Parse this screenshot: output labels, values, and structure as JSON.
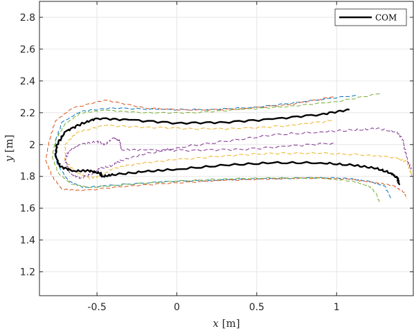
{
  "chart_data": {
    "type": "line",
    "title": "",
    "xlabel": {
      "var": "x",
      "unit": " [m]"
    },
    "ylabel": {
      "var": "y",
      "unit": " [m]"
    },
    "xlim": [
      -0.86,
      1.48
    ],
    "ylim": [
      1.05,
      2.9
    ],
    "xticks": [
      -0.5,
      0,
      0.5,
      1
    ],
    "xtick_labels": [
      "-0.5",
      "0",
      "0.5",
      "1"
    ],
    "yticks": [
      1.2,
      1.4,
      1.6,
      1.8,
      2.0,
      2.2,
      2.4,
      2.6,
      2.8
    ],
    "ytick_labels": [
      "1.2",
      "1.4",
      "1.6",
      "1.8",
      "2",
      "2.2",
      "2.4",
      "2.6",
      "2.8"
    ],
    "grid": true,
    "legend": {
      "position": "top-right",
      "entries": [
        "COM"
      ]
    },
    "series": [
      {
        "name": "COM",
        "color": "#000000",
        "style": "solid",
        "wobble": 0.006,
        "points": [
          [
            1.08,
            2.22
          ],
          [
            0.9,
            2.19
          ],
          [
            0.6,
            2.16
          ],
          [
            0.3,
            2.14
          ],
          [
            0,
            2.135
          ],
          [
            -0.3,
            2.155
          ],
          [
            -0.5,
            2.165
          ],
          [
            -0.6,
            2.13
          ],
          [
            -0.7,
            2.08
          ],
          [
            -0.75,
            2.0
          ],
          [
            -0.76,
            1.93
          ],
          [
            -0.73,
            1.86
          ],
          [
            -0.65,
            1.835
          ],
          [
            -0.55,
            1.835
          ],
          [
            -0.48,
            1.82
          ],
          [
            -0.47,
            1.8
          ],
          [
            -0.4,
            1.81
          ],
          [
            -0.2,
            1.83
          ],
          [
            0,
            1.845
          ],
          [
            0.3,
            1.87
          ],
          [
            0.6,
            1.885
          ],
          [
            0.9,
            1.885
          ],
          [
            1.1,
            1.87
          ],
          [
            1.25,
            1.85
          ],
          [
            1.34,
            1.82
          ],
          [
            1.38,
            1.79
          ],
          [
            1.39,
            1.75
          ]
        ]
      },
      {
        "color": "#0072BD",
        "style": "dashed",
        "wobble": 0.004,
        "points": [
          [
            1.12,
            2.31
          ],
          [
            0.8,
            2.27
          ],
          [
            0.5,
            2.235
          ],
          [
            0.2,
            2.22
          ],
          [
            -0.1,
            2.22
          ],
          [
            -0.4,
            2.23
          ],
          [
            -0.6,
            2.21
          ],
          [
            -0.72,
            2.14
          ],
          [
            -0.76,
            2.02
          ],
          [
            -0.75,
            1.88
          ],
          [
            -0.68,
            1.77
          ],
          [
            -0.58,
            1.73
          ],
          [
            -0.4,
            1.745
          ],
          [
            -0.1,
            1.765
          ],
          [
            0.2,
            1.775
          ],
          [
            0.5,
            1.785
          ],
          [
            0.8,
            1.79
          ],
          [
            1.05,
            1.79
          ],
          [
            1.2,
            1.77
          ],
          [
            1.3,
            1.74
          ],
          [
            1.34,
            1.66
          ]
        ]
      },
      {
        "color": "#D95319",
        "style": "dashed",
        "wobble": 0.004,
        "points": [
          [
            0.98,
            2.3
          ],
          [
            0.7,
            2.25
          ],
          [
            0.4,
            2.225
          ],
          [
            0.1,
            2.215
          ],
          [
            -0.2,
            2.23
          ],
          [
            -0.45,
            2.28
          ],
          [
            -0.65,
            2.23
          ],
          [
            -0.76,
            2.15
          ],
          [
            -0.8,
            2.02
          ],
          [
            -0.82,
            1.9
          ],
          [
            -0.78,
            1.8
          ],
          [
            -0.72,
            1.72
          ],
          [
            -0.6,
            1.71
          ],
          [
            -0.3,
            1.74
          ],
          [
            0,
            1.76
          ],
          [
            0.3,
            1.775
          ],
          [
            0.6,
            1.785
          ],
          [
            0.9,
            1.79
          ],
          [
            1.1,
            1.78
          ],
          [
            1.25,
            1.76
          ],
          [
            1.36,
            1.74
          ],
          [
            1.42,
            1.7
          ],
          [
            1.44,
            1.66
          ]
        ]
      },
      {
        "color": "#EDB120",
        "style": "dashed",
        "wobble": 0.006,
        "points": [
          [
            0.97,
            2.15
          ],
          [
            0.7,
            2.12
          ],
          [
            0.4,
            2.1
          ],
          [
            0.1,
            2.1
          ],
          [
            -0.2,
            2.11
          ],
          [
            -0.45,
            2.12
          ],
          [
            -0.62,
            2.08
          ],
          [
            -0.7,
            2.0
          ],
          [
            -0.7,
            1.9
          ],
          [
            -0.64,
            1.83
          ],
          [
            -0.55,
            1.79
          ],
          [
            -0.48,
            1.8
          ],
          [
            -0.4,
            1.85
          ],
          [
            -0.25,
            1.88
          ],
          [
            0,
            1.905
          ],
          [
            0.3,
            1.93
          ],
          [
            0.6,
            1.945
          ],
          [
            0.9,
            1.945
          ],
          [
            1.2,
            1.935
          ],
          [
            1.38,
            1.915
          ],
          [
            1.44,
            1.89
          ],
          [
            1.46,
            1.84
          ],
          [
            1.47,
            1.8
          ]
        ]
      },
      {
        "color": "#7E2F8E",
        "style": "dashed",
        "wobble": 0.007,
        "points": [
          [
            0.98,
            2.01
          ],
          [
            0.7,
            1.99
          ],
          [
            0.4,
            1.97
          ],
          [
            0.1,
            1.965
          ],
          [
            -0.2,
            1.965
          ],
          [
            -0.35,
            1.97
          ],
          [
            -0.36,
            2.03
          ],
          [
            -0.4,
            2.04
          ],
          [
            -0.45,
            2.0
          ],
          [
            -0.5,
            2.02
          ],
          [
            -0.6,
            2.0
          ],
          [
            -0.68,
            1.96
          ],
          [
            -0.7,
            1.9
          ],
          [
            -0.67,
            1.82
          ],
          [
            -0.6,
            1.79
          ],
          [
            -0.52,
            1.82
          ],
          [
            -0.48,
            1.85
          ],
          [
            -0.4,
            1.87
          ],
          [
            -0.35,
            1.9
          ],
          [
            -0.2,
            1.94
          ],
          [
            0,
            1.98
          ],
          [
            0.3,
            2.02
          ],
          [
            0.6,
            2.06
          ],
          [
            0.9,
            2.08
          ],
          [
            1.1,
            2.09
          ],
          [
            1.25,
            2.1
          ],
          [
            1.38,
            2.08
          ],
          [
            1.42,
            2.02
          ],
          [
            1.43,
            1.95
          ],
          [
            1.45,
            1.88
          ],
          [
            1.47,
            1.84
          ]
        ]
      },
      {
        "color": "#77AC30",
        "style": "dashed",
        "wobble": 0.004,
        "points": [
          [
            1.27,
            2.32
          ],
          [
            1.0,
            2.27
          ],
          [
            0.7,
            2.24
          ],
          [
            0.4,
            2.22
          ],
          [
            0.1,
            2.2
          ],
          [
            -0.2,
            2.2
          ],
          [
            -0.45,
            2.215
          ],
          [
            -0.6,
            2.2
          ],
          [
            -0.7,
            2.13
          ],
          [
            -0.76,
            2.03
          ],
          [
            -0.78,
            1.92
          ],
          [
            -0.74,
            1.82
          ],
          [
            -0.66,
            1.75
          ],
          [
            -0.55,
            1.73
          ],
          [
            -0.3,
            1.75
          ],
          [
            0,
            1.77
          ],
          [
            0.3,
            1.785
          ],
          [
            0.6,
            1.79
          ],
          [
            0.9,
            1.79
          ],
          [
            1.1,
            1.77
          ],
          [
            1.2,
            1.74
          ],
          [
            1.25,
            1.69
          ],
          [
            1.27,
            1.63
          ]
        ]
      }
    ]
  }
}
